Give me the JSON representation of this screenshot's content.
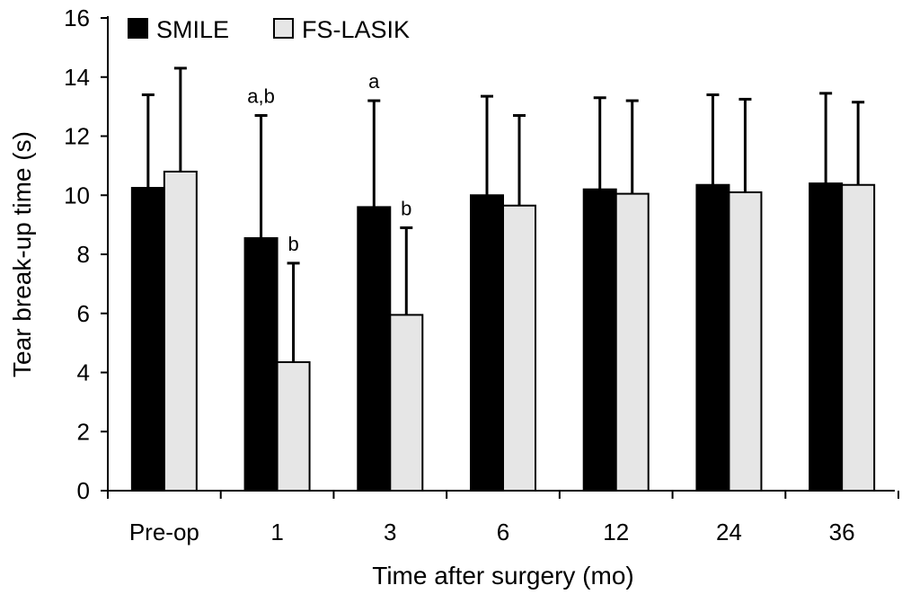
{
  "chart_data": {
    "type": "bar",
    "title": "",
    "xlabel": "Time after surgery (mo)",
    "ylabel": "Tear break-up time (s)",
    "ylim": [
      0,
      16
    ],
    "yticks": [
      0,
      2,
      4,
      6,
      8,
      10,
      12,
      14,
      16
    ],
    "categories": [
      "Pre-op",
      "1",
      "3",
      "6",
      "12",
      "24",
      "36"
    ],
    "series": [
      {
        "name": "SMILE",
        "color": "#000000",
        "values": [
          10.25,
          8.55,
          9.6,
          10.0,
          10.2,
          10.35,
          10.4
        ],
        "error": [
          3.15,
          4.15,
          3.6,
          3.35,
          3.1,
          3.05,
          3.05
        ],
        "annotations": [
          "",
          "a,b",
          "a",
          "",
          "",
          "",
          ""
        ]
      },
      {
        "name": "FS-LASIK",
        "color": "#e6e6e6",
        "values": [
          10.8,
          4.35,
          5.95,
          9.65,
          10.05,
          10.1,
          10.35
        ],
        "error": [
          3.5,
          3.35,
          2.95,
          3.05,
          3.15,
          3.15,
          2.8
        ],
        "annotations": [
          "",
          "b",
          "b",
          "",
          "",
          "",
          ""
        ]
      }
    ],
    "legend": "top-left",
    "grid": false,
    "error_bars": "upper"
  }
}
